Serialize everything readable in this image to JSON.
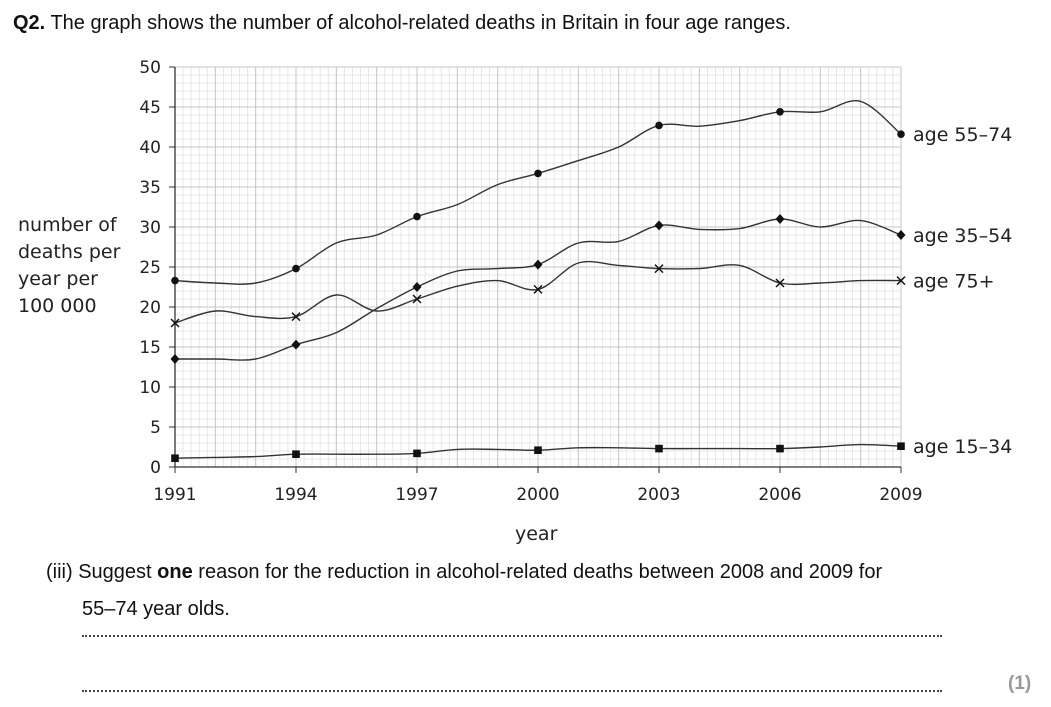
{
  "question": {
    "number": "Q2.",
    "title": "The graph shows the number of alcohol-related deaths in Britain in four age ranges.",
    "part": "(iii) Suggest",
    "bold_word": "one",
    "part_rest": "reason for the reduction in alcohol-related deaths between 2008 and 2009 for",
    "part_line2": "55–74 year olds.",
    "marks": "(1)"
  },
  "chart_data": {
    "type": "line",
    "title": "",
    "xlabel": "year",
    "ylabel_lines": [
      "number of",
      "deaths per",
      "year per",
      "100 000"
    ],
    "x_ticks": [
      1991,
      1994,
      1997,
      2000,
      2003,
      2006,
      2009
    ],
    "y_ticks": [
      0,
      5,
      10,
      15,
      20,
      25,
      30,
      35,
      40,
      45,
      50
    ],
    "xlim": [
      1991,
      2009
    ],
    "ylim": [
      0,
      50
    ],
    "grid": true,
    "series": [
      {
        "name": "age 55–74",
        "marker": "dot",
        "x": [
          1991,
          1992,
          1993,
          1994,
          1995,
          1996,
          1997,
          1998,
          1999,
          2000,
          2001,
          2002,
          2003,
          2004,
          2005,
          2006,
          2007,
          2008,
          2009
        ],
        "y": [
          23.3,
          23.0,
          23.0,
          24.8,
          28.0,
          29.0,
          31.3,
          32.8,
          35.3,
          36.7,
          38.3,
          40.0,
          42.7,
          42.6,
          43.3,
          44.4,
          44.4,
          45.7,
          41.6
        ],
        "markers_at": [
          1991,
          1994,
          1997,
          2000,
          2003,
          2006,
          2009
        ]
      },
      {
        "name": "age 35–54",
        "marker": "diamond",
        "x": [
          1991,
          1992,
          1993,
          1994,
          1995,
          1996,
          1997,
          1998,
          1999,
          2000,
          2001,
          2002,
          2003,
          2004,
          2005,
          2006,
          2007,
          2008,
          2009
        ],
        "y": [
          13.5,
          13.5,
          13.5,
          15.3,
          16.8,
          19.8,
          22.5,
          24.5,
          24.8,
          25.3,
          28.0,
          28.2,
          30.2,
          29.7,
          29.8,
          31.0,
          30.0,
          30.8,
          29.0
        ],
        "markers_at": [
          1991,
          1994,
          1997,
          2000,
          2003,
          2006,
          2009
        ]
      },
      {
        "name": "age 75+",
        "marker": "cross",
        "x": [
          1991,
          1992,
          1993,
          1994,
          1995,
          1996,
          1997,
          1998,
          1999,
          2000,
          2001,
          2002,
          2003,
          2004,
          2005,
          2006,
          2007,
          2008,
          2009
        ],
        "y": [
          18.0,
          19.5,
          18.8,
          18.8,
          21.5,
          19.5,
          21.0,
          22.6,
          23.3,
          22.2,
          25.5,
          25.2,
          24.8,
          24.8,
          25.2,
          23.0,
          23.0,
          23.3,
          23.3
        ],
        "markers_at": [
          1991,
          1994,
          1997,
          2000,
          2003,
          2006,
          2009
        ]
      },
      {
        "name": "age 15–34",
        "marker": "square",
        "x": [
          1991,
          1992,
          1993,
          1994,
          1995,
          1996,
          1997,
          1998,
          1999,
          2000,
          2001,
          2002,
          2003,
          2004,
          2005,
          2006,
          2007,
          2008,
          2009
        ],
        "y": [
          1.1,
          1.2,
          1.3,
          1.6,
          1.6,
          1.6,
          1.7,
          2.2,
          2.2,
          2.1,
          2.4,
          2.4,
          2.3,
          2.3,
          2.3,
          2.3,
          2.5,
          2.8,
          2.6
        ],
        "markers_at": [
          1991,
          1994,
          1997,
          2000,
          2003,
          2006,
          2009
        ]
      }
    ]
  }
}
